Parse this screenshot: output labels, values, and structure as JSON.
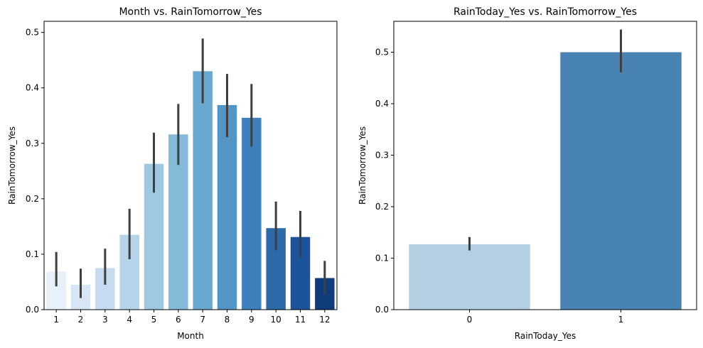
{
  "chart_data": [
    {
      "type": "bar",
      "title": "Month vs. RainTomorrow_Yes",
      "xlabel": "Month",
      "ylabel": "RainTomorrow_Yes",
      "categories": [
        "1",
        "2",
        "3",
        "4",
        "5",
        "6",
        "7",
        "8",
        "9",
        "10",
        "11",
        "12"
      ],
      "values": [
        0.069,
        0.045,
        0.075,
        0.135,
        0.263,
        0.316,
        0.43,
        0.369,
        0.346,
        0.147,
        0.131,
        0.057
      ],
      "error_low": [
        0.042,
        0.021,
        0.045,
        0.091,
        0.211,
        0.261,
        0.372,
        0.311,
        0.294,
        0.107,
        0.094,
        0.028
      ],
      "error_high": [
        0.104,
        0.074,
        0.11,
        0.182,
        0.319,
        0.371,
        0.489,
        0.425,
        0.407,
        0.195,
        0.178,
        0.088
      ],
      "colors": [
        "#e8f1fa",
        "#d6e6f4",
        "#c6dbef",
        "#b6d4e9",
        "#9fc9e1",
        "#84b9d8",
        "#69a8d0",
        "#5395c6",
        "#3d80bb",
        "#2c6aaa",
        "#1d539b",
        "#0f3d7c"
      ],
      "ylim": [
        0,
        0.52
      ],
      "yticks": [
        "0.0",
        "0.1",
        "0.2",
        "0.3",
        "0.4",
        "0.5"
      ],
      "grid": false
    },
    {
      "type": "bar",
      "title": "RainToday_Yes vs. RainTomorrow_Yes",
      "xlabel": "RainToday_Yes",
      "ylabel": "RainTomorrow_Yes",
      "categories": [
        "0",
        "1"
      ],
      "values": [
        0.127,
        0.5
      ],
      "error_low": [
        0.115,
        0.461
      ],
      "error_high": [
        0.141,
        0.544
      ],
      "colors": [
        "#b4cfe2",
        "#4883b3"
      ],
      "ylim": [
        0,
        0.56
      ],
      "yticks": [
        "0.0",
        "0.1",
        "0.2",
        "0.3",
        "0.4",
        "0.5"
      ],
      "grid": false
    }
  ]
}
